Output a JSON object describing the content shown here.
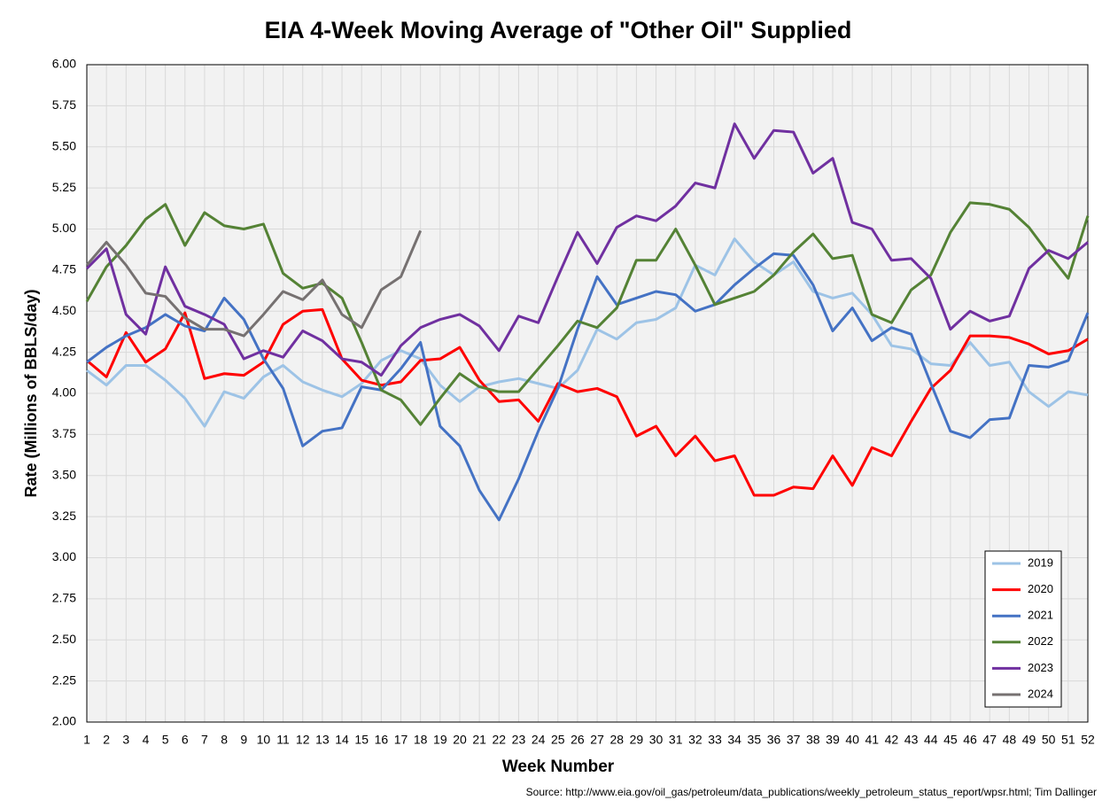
{
  "chart_data": {
    "type": "line",
    "title": "EIA 4-Week Moving Average of \"Other Oil\" Supplied",
    "x_label": "Week Number",
    "y_label": "Rate (Millions of BBLS/day)",
    "source": "Source: http://www.eia.gov/oil_gas/petroleum/data_publications/weekly_petroleum_status_report/wpsr.html; Tim Dallinger",
    "x": [
      1,
      2,
      3,
      4,
      5,
      6,
      7,
      8,
      9,
      10,
      11,
      12,
      13,
      14,
      15,
      16,
      17,
      18,
      19,
      20,
      21,
      22,
      23,
      24,
      25,
      26,
      27,
      28,
      29,
      30,
      31,
      32,
      33,
      34,
      35,
      36,
      37,
      38,
      39,
      40,
      41,
      42,
      43,
      44,
      45,
      46,
      47,
      48,
      49,
      50,
      51,
      52
    ],
    "xlim": [
      1,
      52
    ],
    "xticks": [
      1,
      2,
      3,
      4,
      5,
      6,
      7,
      8,
      9,
      10,
      11,
      12,
      13,
      14,
      15,
      16,
      17,
      18,
      19,
      20,
      21,
      22,
      23,
      24,
      25,
      26,
      27,
      28,
      29,
      30,
      31,
      32,
      33,
      34,
      35,
      36,
      37,
      38,
      39,
      40,
      41,
      42,
      43,
      44,
      45,
      46,
      47,
      48,
      49,
      50,
      51,
      52
    ],
    "ylim": [
      2,
      6
    ],
    "yticks": [
      {
        "value": 2,
        "label": "2.00"
      },
      {
        "value": 2.25,
        "label": "2.25"
      },
      {
        "value": 2.5,
        "label": "2.50"
      },
      {
        "value": 2.75,
        "label": "2.75"
      },
      {
        "value": 3,
        "label": "3.00"
      },
      {
        "value": 3.25,
        "label": "3.25"
      },
      {
        "value": 3.5,
        "label": "3.50"
      },
      {
        "value": 3.75,
        "label": "3.75"
      },
      {
        "value": 4,
        "label": "4.00"
      },
      {
        "value": 4.25,
        "label": "4.25"
      },
      {
        "value": 4.5,
        "label": "4.50"
      },
      {
        "value": 4.75,
        "label": "4.75"
      },
      {
        "value": 5,
        "label": "5.00"
      },
      {
        "value": 5.25,
        "label": "5.25"
      },
      {
        "value": 5.5,
        "label": "5.50"
      },
      {
        "value": 5.75,
        "label": "5.75"
      },
      {
        "value": 6,
        "label": "6.00"
      }
    ],
    "grid": true,
    "legend": "lower right",
    "series": [
      {
        "name": "2019",
        "color": "#9dc3e6",
        "values": [
          4.14,
          4.05,
          4.17,
          4.17,
          4.08,
          3.97,
          3.8,
          4.01,
          3.97,
          4.1,
          4.17,
          4.07,
          4.02,
          3.98,
          4.06,
          4.2,
          4.26,
          4.21,
          4.05,
          3.95,
          4.04,
          4.07,
          4.09,
          4.06,
          4.03,
          4.14,
          4.39,
          4.33,
          4.43,
          4.45,
          4.52,
          4.78,
          4.72,
          4.94,
          4.8,
          4.72,
          4.8,
          4.62,
          4.58,
          4.61,
          4.48,
          4.29,
          4.27,
          4.18,
          4.17,
          4.31,
          4.17,
          4.19,
          4.01,
          3.92,
          4.01,
          3.99
        ]
      },
      {
        "name": "2020",
        "color": "#ff0000",
        "values": [
          4.2,
          4.1,
          4.37,
          4.19,
          4.27,
          4.49,
          4.09,
          4.12,
          4.11,
          4.19,
          4.42,
          4.5,
          4.51,
          4.21,
          4.08,
          4.05,
          4.07,
          4.2,
          4.21,
          4.28,
          4.08,
          3.95,
          3.96,
          3.83,
          4.06,
          4.01,
          4.03,
          3.98,
          3.74,
          3.8,
          3.62,
          3.74,
          3.59,
          3.62,
          3.38,
          3.38,
          3.43,
          3.42,
          3.62,
          3.44,
          3.67,
          3.62,
          3.83,
          4.03,
          4.14,
          4.35,
          4.35,
          4.34,
          4.3,
          4.24,
          4.26,
          4.33
        ]
      },
      {
        "name": "2021",
        "color": "#4472c4",
        "values": [
          4.19,
          4.28,
          4.35,
          4.4,
          4.48,
          4.41,
          4.38,
          4.58,
          4.45,
          4.21,
          4.03,
          3.68,
          3.77,
          3.79,
          4.04,
          4.02,
          4.15,
          4.31,
          3.8,
          3.68,
          3.41,
          3.23,
          3.48,
          3.77,
          4.03,
          4.39,
          4.71,
          4.54,
          4.58,
          4.62,
          4.6,
          4.5,
          4.54,
          4.66,
          4.76,
          4.85,
          4.84,
          4.66,
          4.38,
          4.52,
          4.32,
          4.4,
          4.36,
          4.06,
          3.77,
          3.73,
          3.84,
          3.85,
          4.17,
          4.16,
          4.2,
          4.49
        ]
      },
      {
        "name": "2022",
        "color": "#548235",
        "values": [
          4.56,
          4.77,
          4.9,
          5.06,
          5.15,
          4.9,
          5.1,
          5.02,
          5.0,
          5.03,
          4.73,
          4.64,
          4.67,
          4.58,
          4.31,
          4.02,
          3.96,
          3.81,
          3.97,
          4.12,
          4.04,
          4.01,
          4.01,
          4.15,
          4.29,
          4.44,
          4.4,
          4.52,
          4.81,
          4.81,
          5.0,
          4.78,
          4.54,
          4.58,
          4.62,
          4.72,
          4.86,
          4.97,
          4.82,
          4.84,
          4.48,
          4.43,
          4.63,
          4.72,
          4.98,
          5.16,
          5.15,
          5.12,
          5.01,
          4.85,
          4.7,
          5.08
        ]
      },
      {
        "name": "2023",
        "color": "#7030a0",
        "values": [
          4.76,
          4.88,
          4.48,
          4.36,
          4.77,
          4.53,
          4.48,
          4.42,
          4.21,
          4.26,
          4.22,
          4.38,
          4.32,
          4.21,
          4.19,
          4.11,
          4.29,
          4.4,
          4.45,
          4.48,
          4.41,
          4.26,
          4.47,
          4.43,
          4.71,
          4.98,
          4.79,
          5.01,
          5.08,
          5.05,
          5.14,
          5.28,
          5.25,
          5.64,
          5.43,
          5.6,
          5.59,
          5.34,
          5.43,
          5.04,
          5.0,
          4.81,
          4.82,
          4.7,
          4.39,
          4.5,
          4.44,
          4.47,
          4.76,
          4.87,
          4.82,
          4.92
        ]
      },
      {
        "name": "2024",
        "color": "#767171",
        "values": [
          4.78,
          4.92,
          4.78,
          4.61,
          4.59,
          4.46,
          4.39,
          4.39,
          4.35,
          4.48,
          4.62,
          4.57,
          4.69,
          4.48,
          4.4,
          4.63,
          4.71,
          4.99,
          null,
          null,
          null,
          null,
          null,
          null,
          null,
          null,
          null,
          null,
          null,
          null,
          null,
          null,
          null,
          null,
          null,
          null,
          null,
          null,
          null,
          null,
          null,
          null,
          null,
          null,
          null,
          null,
          null,
          null,
          null,
          null,
          null,
          null
        ]
      }
    ]
  }
}
